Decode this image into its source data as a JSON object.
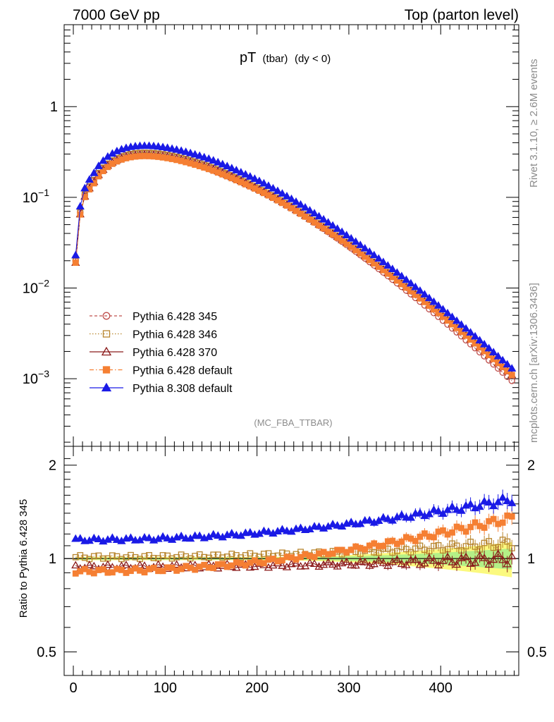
{
  "header": {
    "left": "7000 GeV pp",
    "right": "Top (parton level)"
  },
  "title": {
    "main": "pT",
    "sub1": "(tbar)",
    "sub2": "(dy < 0)"
  },
  "side_labels": {
    "rivet": "Rivet 3.1.10, ≥ 2.6M events",
    "mcplots": "mcplots.cern.ch [arXiv:1306.3436]"
  },
  "analysis_tag": "(MC_FBA_TTBAR)",
  "ratio_ylabel": "Ratio to Pythia 6.428 345",
  "chart_data": [
    {
      "type": "scatter",
      "panel": "main",
      "yscale": "log",
      "xlim": [
        -10,
        485
      ],
      "ylim": [
        0.00018,
        8
      ],
      "x_ticks": [
        "0",
        "100",
        "200",
        "300",
        "400"
      ],
      "y_ticks": [
        {
          "base": "1",
          "exp": ""
        },
        {
          "base": "10",
          "exp": "−1"
        },
        {
          "base": "10",
          "exp": "−2"
        },
        {
          "base": "10",
          "exp": "−3"
        }
      ],
      "legend_position": "lower-left",
      "x_bins": {
        "start": 2.5,
        "step": 5,
        "count": 96
      },
      "series": [
        {
          "name": "Pythia 6.428 345",
          "color": "#c0504d",
          "marker": "circle-open",
          "line": "dashed",
          "values": {
            "peak": 0.305,
            "x_first": 2.5,
            "y_first": 0.02,
            "x_last": 477.5,
            "y_last": 0.00095
          }
        },
        {
          "name": "Pythia 6.428 346",
          "color": "#b8862f",
          "marker": "square-open",
          "line": "dotted",
          "values": {
            "peak": 0.31,
            "x_first": 2.5,
            "y_first": 0.02,
            "x_last": 477.5,
            "y_last": 0.0011
          }
        },
        {
          "name": "Pythia 6.428 370",
          "color": "#8b1a1a",
          "marker": "triangle-open",
          "line": "solid",
          "values": {
            "peak": 0.295,
            "x_first": 2.5,
            "y_first": 0.019,
            "x_last": 477.5,
            "y_last": 0.0011
          }
        },
        {
          "name": "Pythia 6.428 default",
          "color": "#f57f33",
          "marker": "square-filled",
          "line": "dashdot",
          "values": {
            "peak": 0.285,
            "x_first": 2.5,
            "y_first": 0.019,
            "x_last": 477.5,
            "y_last": 0.0011
          }
        },
        {
          "name": "Pythia 8.308 default",
          "color": "#1a1ae6",
          "marker": "triangle-filled",
          "line": "solid",
          "values": {
            "peak": 0.37,
            "x_first": 2.5,
            "y_first": 0.023,
            "x_last": 477.5,
            "y_last": 0.0013
          }
        }
      ]
    },
    {
      "type": "scatter",
      "panel": "ratio",
      "xlim": [
        -10,
        485
      ],
      "ylim": [
        0.42,
        2.3
      ],
      "x_ticks": [
        "0",
        "100",
        "200",
        "300",
        "400"
      ],
      "y_ticks": [
        "2",
        "1",
        "0.5"
      ],
      "ylabel": "Ratio to Pythia 6.428 345",
      "reference_line": 1,
      "series": [
        {
          "name": "Pythia 6.428 346",
          "color": "#b8862f",
          "ratio": {
            "start": 1.01,
            "end": 1.12
          }
        },
        {
          "name": "Pythia 6.428 370",
          "color": "#8b1a1a",
          "ratio": {
            "start": 0.94,
            "end": 1.0
          }
        },
        {
          "name": "Pythia 6.428 default",
          "color": "#f57f33",
          "ratio": {
            "start": 0.91,
            "end": 1.35
          }
        },
        {
          "name": "Pythia 8.308 default",
          "color": "#1a1ae6",
          "ratio": {
            "start": 1.15,
            "end": 1.55
          }
        }
      ]
    }
  ]
}
